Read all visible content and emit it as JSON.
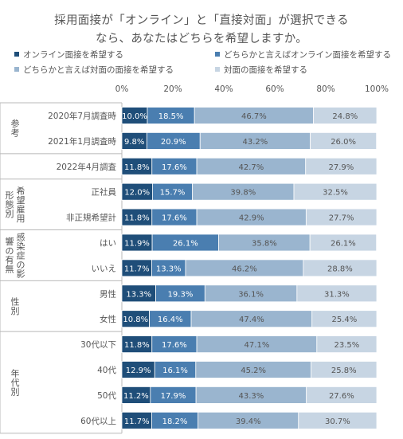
{
  "title_line1": "採用面接が「オンライン」と「直接対面」が選択できる",
  "title_line2": "なら、あなたはどちらを希望しますか。",
  "colors": [
    "#1f4e79",
    "#4a7eb0",
    "#9ab5cf",
    "#c7d5e3"
  ],
  "chart_data": {
    "type": "bar",
    "orientation": "horizontal",
    "stacked": true,
    "title": "採用面接が「オンライン」と「直接対面」が選択できるなら、あなたはどちらを希望しますか。",
    "xlim": [
      0,
      100
    ],
    "x_ticks": [
      "0%",
      "20%",
      "40%",
      "60%",
      "80%",
      "100%"
    ],
    "legend_position": "top",
    "series": [
      {
        "name": "オンライン面接を希望する",
        "values": [
          10.0,
          9.8,
          11.8,
          12.0,
          11.8,
          11.9,
          11.7,
          13.3,
          10.8,
          11.8,
          12.9,
          11.2,
          11.7
        ]
      },
      {
        "name": "どちらかと言えばオンライン面接を希望する",
        "values": [
          18.5,
          20.9,
          17.6,
          15.7,
          17.6,
          26.1,
          13.3,
          19.3,
          16.4,
          17.6,
          16.1,
          17.9,
          18.2
        ]
      },
      {
        "name": "どちらかと言えば対面の面接を希望する",
        "values": [
          46.7,
          43.2,
          42.7,
          39.8,
          42.9,
          35.8,
          46.2,
          36.1,
          47.4,
          47.1,
          45.2,
          43.3,
          39.4
        ]
      },
      {
        "name": "対面の面接を希望する",
        "values": [
          24.8,
          26.0,
          27.9,
          32.5,
          27.7,
          26.1,
          28.8,
          31.3,
          25.4,
          23.5,
          25.8,
          27.6,
          30.7
        ]
      }
    ],
    "categories": [
      "2020年7月調査時",
      "2021年1月調査時",
      "2022年4月調査",
      "正社員",
      "非正規希望計",
      "はい",
      "いいえ",
      "男性",
      "女性",
      "30代以下",
      "40代",
      "50代",
      "60代以上"
    ],
    "value_labels": [
      [
        "10.0%",
        "18.5%",
        "46.7%",
        "24.8%"
      ],
      [
        "9.8%",
        "20.9%",
        "43.2%",
        "26.0%"
      ],
      [
        "11.8%",
        "17.6%",
        "42.7%",
        "27.9%"
      ],
      [
        "12.0%",
        "15.7%",
        "39.8%",
        "32.5%"
      ],
      [
        "11.8%",
        "17.6%",
        "42.9%",
        "27.7%"
      ],
      [
        "11.9%",
        "26.1%",
        "35.8%",
        "26.1%"
      ],
      [
        "11.7%",
        "13.3%",
        "46.2%",
        "28.8%"
      ],
      [
        "13.3%",
        "19.3%",
        "36.1%",
        "31.3%"
      ],
      [
        "10.8%",
        "16.4%",
        "47.4%",
        "25.4%"
      ],
      [
        "11.8%",
        "17.6%",
        "47.1%",
        "23.5%"
      ],
      [
        "12.9%",
        "16.1%",
        "45.2%",
        "25.8%"
      ],
      [
        "11.2%",
        "17.9%",
        "43.3%",
        "27.6%"
      ],
      [
        "11.7%",
        "18.2%",
        "39.4%",
        "30.7%"
      ]
    ],
    "groups": [
      {
        "label": "参考",
        "rows": [
          0,
          1
        ]
      },
      {
        "label": "",
        "rows": [
          2
        ]
      },
      {
        "label": "希望雇用形態別",
        "rows": [
          3,
          4
        ]
      },
      {
        "label": "感染症の影響の有無",
        "rows": [
          5,
          6
        ]
      },
      {
        "label": "性別",
        "rows": [
          7,
          8
        ]
      },
      {
        "label": "年代別",
        "rows": [
          9,
          10,
          11,
          12
        ]
      }
    ]
  }
}
